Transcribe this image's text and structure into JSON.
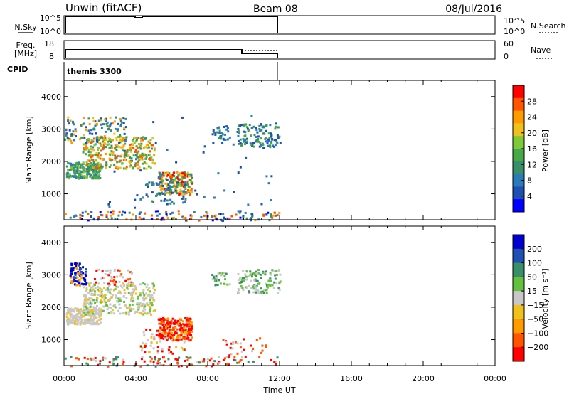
{
  "header": {
    "station": "Unwin (fitACF)",
    "beam": "Beam 08",
    "date": "08/Jul/2016"
  },
  "strip": {
    "nsky_label": "N.Sky",
    "nsky_ticks": [
      "10^5",
      "10^0"
    ],
    "nsearch_label": "N.Search",
    "nsearch_ticks": [
      "10^5",
      "10^0"
    ],
    "freq_label_1": "Freq.",
    "freq_label_2": "[MHz]",
    "freq_ticks": [
      "18",
      "8"
    ],
    "nave_label": "Nave",
    "nave_ticks": [
      "60",
      "0"
    ],
    "cpid_label": "CPID",
    "cpid_value": "themis 3300"
  },
  "chart_data": [
    {
      "type": "heatmap",
      "name": "power",
      "ylabel": "Slant Range [km]",
      "yticks": [
        1000,
        2000,
        3000,
        4000
      ],
      "ylim": [
        200,
        4500
      ],
      "xlim": [
        0,
        24
      ],
      "colorbar_label": "Power [dB]",
      "colorbar_ticks": [
        "4",
        "8",
        "12",
        "16",
        "20",
        "24",
        "28"
      ],
      "colors": [
        "#0000ff",
        "#1f4fb0",
        "#2b7bb9",
        "#3a8f6a",
        "#4aa84a",
        "#7ec83a",
        "#f0c020",
        "#ff9a00",
        "#ff5500",
        "#ff0000"
      ]
    },
    {
      "type": "heatmap",
      "name": "velocity",
      "ylabel": "Slant Range [km]",
      "yticks": [
        1000,
        2000,
        3000,
        4000
      ],
      "ylim": [
        200,
        4500
      ],
      "xlim": [
        0,
        24
      ],
      "colorbar_label": "Velocity [m s⁻¹]",
      "colorbar_ticks": [
        "200",
        "100",
        "50",
        "15",
        "−15",
        "−50",
        "−100",
        "−200"
      ],
      "colors": [
        "#0000cc",
        "#2050b0",
        "#3a8f6a",
        "#66c040",
        "#c8c8c8",
        "#f0c020",
        "#ff9a00",
        "#ff5500",
        "#ff0000"
      ]
    }
  ],
  "xaxis": {
    "ticks": [
      "00:00",
      "04:00",
      "08:00",
      "12:00",
      "16:00",
      "20:00",
      "00:00"
    ],
    "label": "Time UT",
    "data_end_hour": 12
  }
}
